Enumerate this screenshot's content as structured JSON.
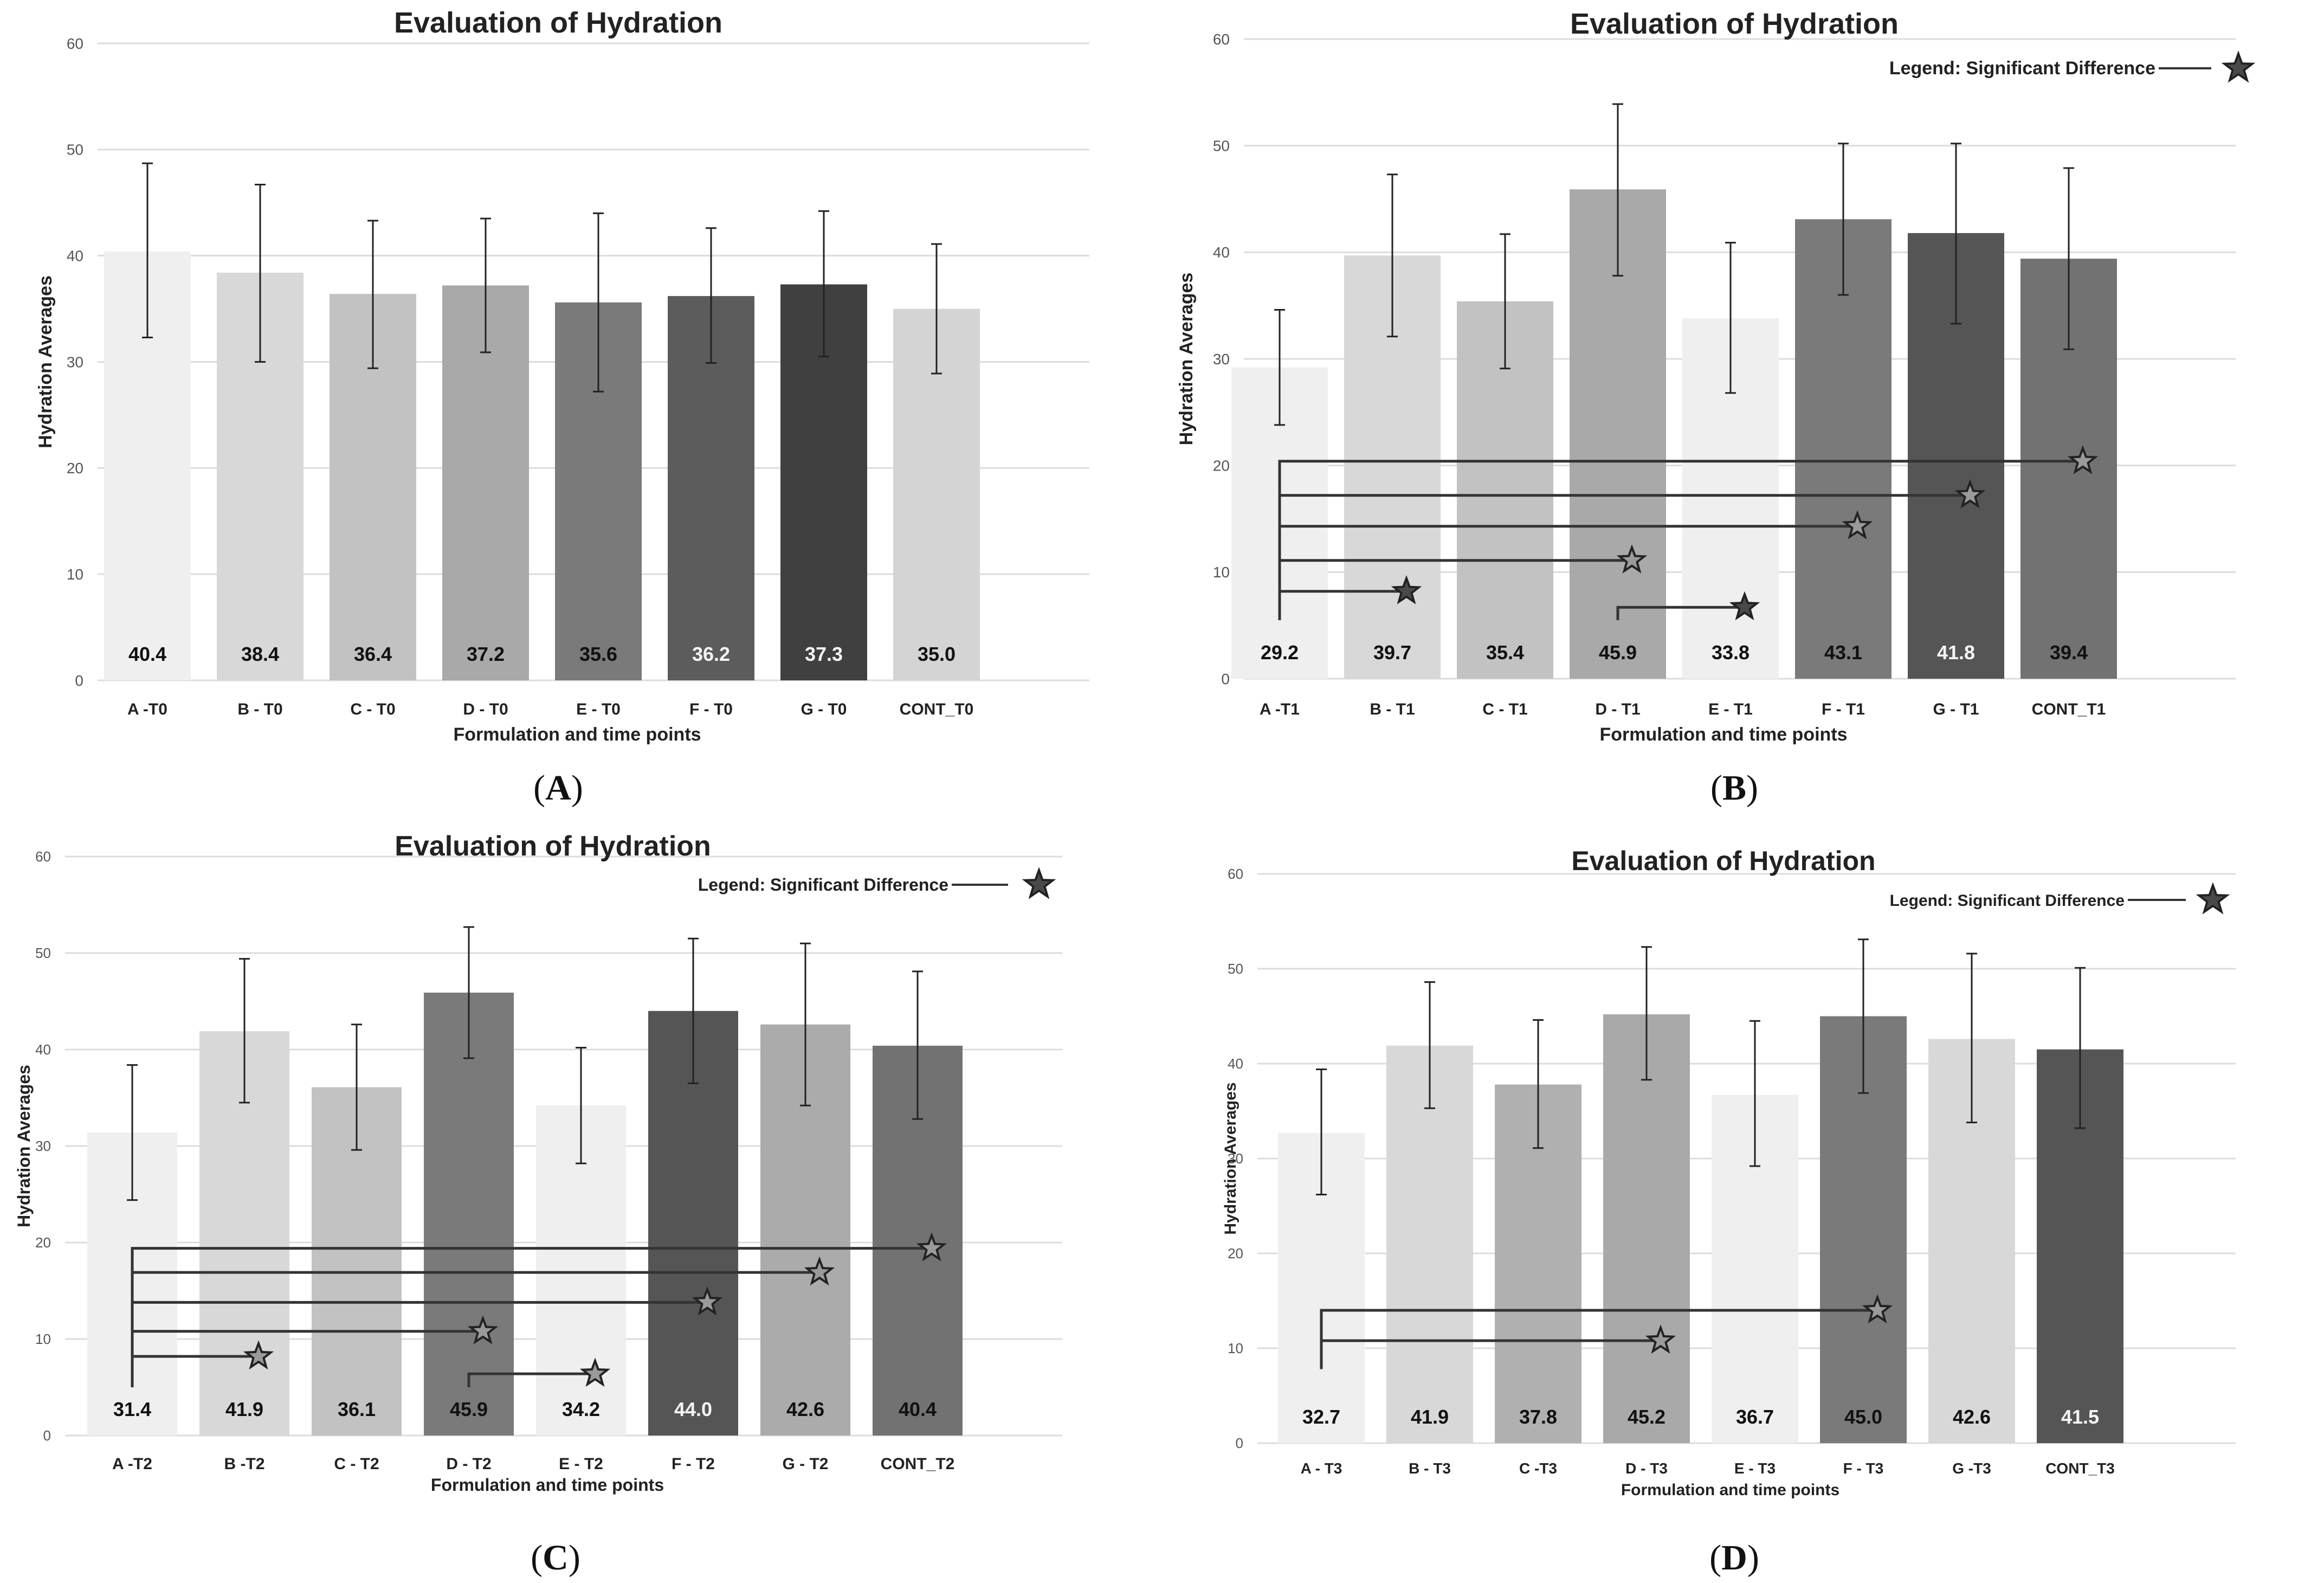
{
  "figure_labels": [
    "A",
    "B",
    "C",
    "D"
  ],
  "chart_data": [
    {
      "panel": "A",
      "type": "bar",
      "title": "Evaluation of Hydration",
      "xlabel": "Formulation and time points",
      "ylabel": "Hydration Averages",
      "ylim": [
        0,
        60
      ],
      "yticks": [
        0,
        10,
        20,
        30,
        40,
        50,
        60
      ],
      "grid": true,
      "categories": [
        "A -T0",
        "B - T0",
        "C - T0",
        "D - T0",
        "E - T0",
        "F - T0",
        "G - T0",
        "CONT_T0"
      ],
      "values": [
        40.4,
        38.4,
        36.4,
        37.2,
        35.6,
        36.2,
        37.3,
        35.0
      ],
      "value_labels": [
        "40.4",
        "38.4",
        "36.4",
        "37.2",
        "35.6",
        "36.2",
        "37.3",
        "35.0"
      ],
      "errors_low": [
        32.3,
        30.0,
        29.4,
        30.9,
        27.2,
        29.9,
        30.5,
        28.9
      ],
      "errors_high": [
        48.7,
        46.7,
        43.3,
        43.5,
        44.0,
        42.6,
        44.2,
        41.1
      ],
      "bar_colors": [
        "#efefef",
        "#d8d8d8",
        "#c2c2c2",
        "#a9a9a9",
        "#7a7a7a",
        "#5c5c5c",
        "#404040",
        "#d4d4d4"
      ],
      "legend": null,
      "significance": []
    },
    {
      "panel": "B",
      "type": "bar",
      "title": "Evaluation of Hydration",
      "xlabel": "Formulation and time points",
      "ylabel": "Hydration Averages",
      "ylim": [
        0,
        60
      ],
      "yticks": [
        0,
        10,
        20,
        30,
        40,
        50,
        60
      ],
      "grid": true,
      "categories": [
        "A -T1",
        "B - T1",
        "C - T1",
        "D - T1",
        "E - T1",
        "F - T1",
        "G - T1",
        "CONT_T1"
      ],
      "values": [
        29.2,
        39.7,
        35.4,
        45.9,
        33.8,
        43.1,
        41.8,
        39.4
      ],
      "value_labels": [
        "29.2",
        "39.7",
        "35.4",
        "45.9",
        "33.8",
        "43.1",
        "41.8",
        "39.4"
      ],
      "errors_low": [
        23.8,
        32.1,
        29.1,
        37.8,
        26.8,
        36.0,
        33.3,
        30.9
      ],
      "errors_high": [
        34.6,
        47.3,
        41.7,
        53.9,
        40.9,
        50.2,
        50.2,
        47.9
      ],
      "bar_colors": [
        "#efefef",
        "#d8d8d8",
        "#c2c2c2",
        "#a9a9a9",
        "#efefef",
        "#7a7a7a",
        "#555555",
        "#727272"
      ],
      "legend": "Legend: Significant Difference",
      "significance": [
        {
          "from": 0,
          "to": 7,
          "level": 20.4,
          "base": 5.5,
          "filled": false
        },
        {
          "from": 0,
          "to": 6,
          "level": 17.2,
          "base": 5.5,
          "filled": false
        },
        {
          "from": 0,
          "to": 5,
          "level": 14.3,
          "base": 5.5,
          "filled": false
        },
        {
          "from": 0,
          "to": 3,
          "level": 11.1,
          "base": 5.5,
          "filled": false
        },
        {
          "from": 0,
          "to": 1,
          "level": 8.2,
          "base": 5.5,
          "filled": true
        },
        {
          "from": 3,
          "to": 4,
          "level": 6.7,
          "base": 5.5,
          "filled": true
        }
      ]
    },
    {
      "panel": "C",
      "type": "bar",
      "title": "Evaluation of Hydration",
      "xlabel": "Formulation and time points",
      "ylabel": "Hydration Averages",
      "ylim": [
        0,
        60
      ],
      "yticks": [
        0,
        10,
        20,
        30,
        40,
        50,
        60
      ],
      "grid": true,
      "categories": [
        "A -T2",
        "B -T2",
        "C - T2",
        "D - T2",
        "E - T2",
        "F - T2",
        "G - T2",
        "CONT_T2"
      ],
      "values": [
        31.4,
        41.9,
        36.1,
        45.9,
        34.2,
        44.0,
        42.6,
        40.4
      ],
      "value_labels": [
        "31.4",
        "41.9",
        "36.1",
        "45.9",
        "34.2",
        "44.0",
        "42.6",
        "40.4"
      ],
      "errors_low": [
        24.4,
        34.5,
        29.6,
        39.1,
        28.2,
        36.5,
        34.2,
        32.8
      ],
      "errors_high": [
        38.4,
        49.4,
        42.6,
        52.7,
        40.2,
        51.5,
        51.0,
        48.1
      ],
      "bar_colors": [
        "#efefef",
        "#d8d8d8",
        "#c2c2c2",
        "#7a7a7a",
        "#efefef",
        "#555555",
        "#ababab",
        "#727272"
      ],
      "legend": "Legend: Significant Difference",
      "significance": [
        {
          "from": 0,
          "to": 7,
          "level": 19.4,
          "base": 5.0,
          "filled": false
        },
        {
          "from": 0,
          "to": 6,
          "level": 16.9,
          "base": 5.0,
          "filled": false
        },
        {
          "from": 0,
          "to": 5,
          "level": 13.8,
          "base": 5.0,
          "filled": false
        },
        {
          "from": 0,
          "to": 3,
          "level": 10.8,
          "base": 5.0,
          "filled": false
        },
        {
          "from": 0,
          "to": 1,
          "level": 8.2,
          "base": 5.0,
          "filled": false
        },
        {
          "from": 3,
          "to": 4,
          "level": 6.4,
          "base": 5.0,
          "filled": false
        }
      ]
    },
    {
      "panel": "D",
      "type": "bar",
      "title": "Evaluation of Hydration",
      "xlabel": "Formulation and time points",
      "ylabel": "Hydration Averages",
      "ylim": [
        0,
        60
      ],
      "yticks": [
        0,
        10,
        20,
        30,
        40,
        50,
        60
      ],
      "grid": true,
      "categories": [
        "A - T3",
        "B - T3",
        "C -T3",
        "D - T3",
        "E - T3",
        "F - T3",
        "G -T3",
        "CONT_T3"
      ],
      "values": [
        32.7,
        41.9,
        37.8,
        45.2,
        36.7,
        45.0,
        42.6,
        41.5
      ],
      "value_labels": [
        "32.7",
        "41.9",
        "37.8",
        "45.2",
        "36.7",
        "45.0",
        "42.6",
        "41.5"
      ],
      "errors_low": [
        26.2,
        35.3,
        31.1,
        38.3,
        29.2,
        36.9,
        33.8,
        33.2
      ],
      "errors_high": [
        39.4,
        48.6,
        44.6,
        52.3,
        44.5,
        53.1,
        51.6,
        50.1
      ],
      "bar_colors": [
        "#efefef",
        "#d8d8d8",
        "#b0b0b0",
        "#a9a9a9",
        "#efefef",
        "#7a7a7a",
        "#d8d8d8",
        "#555555"
      ],
      "legend": "Legend: Significant Difference",
      "significance": [
        {
          "from": 0,
          "to": 5,
          "level": 14.0,
          "base": 7.8,
          "filled": false
        },
        {
          "from": 0,
          "to": 3,
          "level": 10.8,
          "base": 7.8,
          "filled": false
        }
      ]
    }
  ]
}
